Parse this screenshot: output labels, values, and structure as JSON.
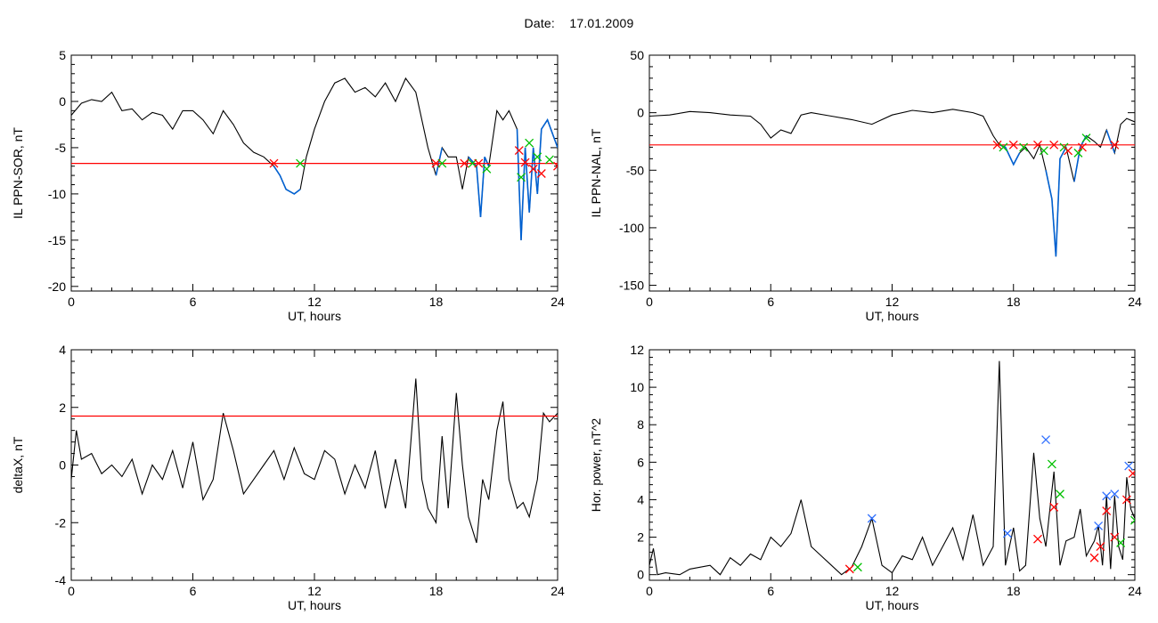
{
  "header": {
    "date_label": "Date:",
    "date_value": "17.01.2009"
  },
  "colors": {
    "trace": "#000000",
    "threshold": "#ff0000",
    "segment": "#0060d0",
    "marker_start": "#00c000",
    "marker_end": "#ff0000",
    "marker_peak": "#3070ff"
  },
  "chart_data": [
    {
      "id": "p1",
      "type": "line",
      "title": "",
      "xlabel": "UT, hours",
      "ylabel": "IL PPN-SOR, nT",
      "xlim": [
        0,
        24
      ],
      "ylim": [
        -20.5,
        5
      ],
      "xticks": [
        0,
        6,
        12,
        18,
        24
      ],
      "yticks": [
        5,
        0,
        -5,
        -10,
        -15,
        -20
      ],
      "threshold": -6.7,
      "series": [
        {
          "x": [
            0,
            0.5,
            1,
            1.5,
            2,
            2.5,
            3,
            3.5,
            4,
            4.5,
            5,
            5.5,
            6,
            6.5,
            7,
            7.5,
            8,
            8.5,
            9,
            9.5,
            10,
            10.3,
            10.6,
            11,
            11.3,
            11.6,
            12,
            12.5,
            13,
            13.5,
            14,
            14.5,
            15,
            15.5,
            16,
            16.5,
            17,
            17.3,
            17.6,
            18,
            18.3,
            18.6,
            19,
            19.3,
            19.6,
            20,
            20.2,
            20.4,
            20.6,
            21,
            21.3,
            21.6,
            22,
            22.2,
            22.4,
            22.6,
            22.8,
            23,
            23.2,
            23.5,
            24
          ],
          "y": [
            -1.5,
            -0.2,
            0.2,
            0,
            1,
            -1,
            -0.8,
            -2,
            -1.2,
            -1.5,
            -3,
            -1,
            -1,
            -2,
            -3.5,
            -1,
            -2.5,
            -4.5,
            -5.5,
            -6,
            -7,
            -8,
            -9.5,
            -10,
            -9.5,
            -6,
            -3,
            0,
            2,
            2.5,
            1,
            1.5,
            0.5,
            2,
            0,
            2.5,
            1,
            -2,
            -5,
            -8,
            -5,
            -6,
            -6,
            -9.5,
            -6,
            -7,
            -12.5,
            -6,
            -7,
            -1,
            -2,
            -1,
            -3,
            -15,
            -5,
            -12,
            -5,
            -10,
            -3,
            -2,
            -5
          ]
        }
      ],
      "blue_segments": [
        [
          10,
          11.3
        ],
        [
          18,
          18.3
        ],
        [
          19.6,
          20.6
        ],
        [
          22,
          24
        ]
      ],
      "markers": [
        {
          "x": 10,
          "y": -6.7,
          "kind": "end"
        },
        {
          "x": 11.3,
          "y": -6.7,
          "kind": "start"
        },
        {
          "x": 18,
          "y": -6.7,
          "kind": "end"
        },
        {
          "x": 18.3,
          "y": -6.7,
          "kind": "start"
        },
        {
          "x": 19.4,
          "y": -6.7,
          "kind": "end"
        },
        {
          "x": 19.8,
          "y": -6.7,
          "kind": "start"
        },
        {
          "x": 20.1,
          "y": -6.7,
          "kind": "end"
        },
        {
          "x": 20.5,
          "y": -7.3,
          "kind": "start"
        },
        {
          "x": 22.1,
          "y": -5.3,
          "kind": "end"
        },
        {
          "x": 22.2,
          "y": -8.2,
          "kind": "start"
        },
        {
          "x": 22.4,
          "y": -6.6,
          "kind": "end"
        },
        {
          "x": 22.6,
          "y": -4.5,
          "kind": "start"
        },
        {
          "x": 22.8,
          "y": -7.3,
          "kind": "end"
        },
        {
          "x": 23,
          "y": -6,
          "kind": "start"
        },
        {
          "x": 23.2,
          "y": -7.8,
          "kind": "end"
        },
        {
          "x": 23.6,
          "y": -6.3,
          "kind": "start"
        },
        {
          "x": 24,
          "y": -7,
          "kind": "end"
        }
      ]
    },
    {
      "id": "p2",
      "type": "line",
      "title": "",
      "xlabel": "UT, hours",
      "ylabel": "IL PPN-NAL, nT",
      "xlim": [
        0,
        24
      ],
      "ylim": [
        -155,
        50
      ],
      "xticks": [
        0,
        6,
        12,
        18,
        24
      ],
      "yticks": [
        50,
        0,
        -50,
        -100,
        -150
      ],
      "threshold": -28,
      "series": [
        {
          "x": [
            0,
            1,
            2,
            3,
            4,
            5,
            5.5,
            6,
            6.5,
            7,
            7.5,
            8,
            9,
            10,
            11,
            12,
            13,
            14,
            15,
            16,
            16.5,
            17,
            17.3,
            17.6,
            18,
            18.3,
            18.6,
            19,
            19.3,
            19.6,
            19.9,
            20.1,
            20.3,
            20.6,
            21,
            21.3,
            21.6,
            22,
            22.3,
            22.6,
            23,
            23.3,
            23.6,
            24
          ],
          "y": [
            -3,
            -2,
            1,
            0,
            -2,
            -3,
            -10,
            -22,
            -15,
            -18,
            -2,
            0,
            -3,
            -6,
            -10,
            -2,
            2,
            0,
            3,
            0,
            -3,
            -20,
            -28,
            -30,
            -45,
            -35,
            -30,
            -40,
            -28,
            -50,
            -75,
            -125,
            -40,
            -30,
            -60,
            -30,
            -20,
            -25,
            -30,
            -15,
            -35,
            -10,
            -5,
            -8
          ]
        }
      ],
      "blue_segments": [
        [
          17.3,
          18.5
        ],
        [
          19.1,
          19.5
        ],
        [
          19.6,
          20.6
        ],
        [
          20.7,
          21.6
        ],
        [
          22.6,
          23.2
        ]
      ],
      "markers": [
        {
          "x": 17.2,
          "y": -28,
          "kind": "end"
        },
        {
          "x": 17.5,
          "y": -30,
          "kind": "start"
        },
        {
          "x": 18,
          "y": -28,
          "kind": "end"
        },
        {
          "x": 18.5,
          "y": -30,
          "kind": "start"
        },
        {
          "x": 19.2,
          "y": -28,
          "kind": "end"
        },
        {
          "x": 19.5,
          "y": -33,
          "kind": "start"
        },
        {
          "x": 20,
          "y": -28,
          "kind": "end"
        },
        {
          "x": 20.5,
          "y": -30,
          "kind": "start"
        },
        {
          "x": 20.7,
          "y": -33,
          "kind": "end"
        },
        {
          "x": 21.2,
          "y": -35,
          "kind": "start"
        },
        {
          "x": 21.4,
          "y": -30,
          "kind": "end"
        },
        {
          "x": 21.6,
          "y": -22,
          "kind": "start"
        },
        {
          "x": 23,
          "y": -28,
          "kind": "end"
        }
      ]
    },
    {
      "id": "p3",
      "type": "line",
      "title": "",
      "xlabel": "UT, hours",
      "ylabel": "deltaX, nT",
      "xlim": [
        0,
        24
      ],
      "ylim": [
        -4,
        4
      ],
      "xticks": [
        0,
        6,
        12,
        18,
        24
      ],
      "yticks": [
        4,
        2,
        0,
        -2,
        -4
      ],
      "threshold": 1.7,
      "series": [
        {
          "x": [
            0,
            0.25,
            0.5,
            1,
            1.5,
            2,
            2.5,
            3,
            3.5,
            4,
            4.5,
            5,
            5.5,
            6,
            6.5,
            7,
            7.5,
            8,
            8.5,
            9,
            9.5,
            10,
            10.5,
            11,
            11.5,
            12,
            12.5,
            13,
            13.5,
            14,
            14.5,
            15,
            15.5,
            16,
            16.5,
            17,
            17.3,
            17.6,
            18,
            18.3,
            18.6,
            19,
            19.3,
            19.6,
            20,
            20.3,
            20.6,
            21,
            21.3,
            21.6,
            22,
            22.3,
            22.6,
            23,
            23.3,
            23.6,
            24
          ],
          "y": [
            -0.5,
            1.2,
            0.2,
            0.4,
            -0.3,
            0,
            -0.4,
            0.2,
            -1,
            0,
            -0.5,
            0.5,
            -0.8,
            0.8,
            -1.2,
            -0.5,
            1.8,
            0.5,
            -1,
            -0.5,
            0,
            0.5,
            -0.5,
            0.6,
            -0.3,
            -0.5,
            0.5,
            0.2,
            -1,
            0,
            -0.8,
            0.5,
            -1.5,
            0.2,
            -1.5,
            3,
            -0.5,
            -1.5,
            -2,
            1,
            -1.5,
            2.5,
            0,
            -1.8,
            -2.7,
            -0.5,
            -1.2,
            1.2,
            2.2,
            -0.5,
            -1.5,
            -1.3,
            -1.8,
            -0.5,
            1.8,
            1.5,
            1.8
          ]
        }
      ],
      "blue_segments": [],
      "markers": []
    },
    {
      "id": "p4",
      "type": "line",
      "title": "",
      "xlabel": "UT, hours",
      "ylabel": "Hor. power, nT^2",
      "xlim": [
        0,
        24
      ],
      "ylim": [
        -0.3,
        12
      ],
      "xticks": [
        0,
        6,
        12,
        18,
        24
      ],
      "yticks": [
        12,
        10,
        8,
        6,
        4,
        2,
        0
      ],
      "threshold": null,
      "series": [
        {
          "x": [
            0,
            0.2,
            0.4,
            0.8,
            1.5,
            2,
            3,
            3.5,
            4,
            4.5,
            5,
            5.5,
            6,
            6.5,
            7,
            7.5,
            8,
            8.5,
            9,
            9.5,
            10,
            10.5,
            11,
            11.5,
            12,
            12.5,
            13,
            13.5,
            14,
            14.5,
            15,
            15.5,
            16,
            16.5,
            17,
            17.3,
            17.6,
            18,
            18.3,
            18.6,
            19,
            19.3,
            19.6,
            20,
            20.3,
            20.6,
            21,
            21.3,
            21.6,
            22,
            22.2,
            22.4,
            22.6,
            22.8,
            23,
            23.2,
            23.4,
            23.6,
            23.8,
            24
          ],
          "y": [
            0.5,
            1.4,
            0,
            0.1,
            0,
            0.3,
            0.5,
            0,
            0.9,
            0.5,
            1.1,
            0.8,
            2,
            1.5,
            2.2,
            4,
            1.5,
            1,
            0.5,
            0,
            0.4,
            1.5,
            3,
            0.5,
            0.1,
            1,
            0.8,
            2,
            0.5,
            1.5,
            2.5,
            0.8,
            3.2,
            0.5,
            1.5,
            11.4,
            0.5,
            2.5,
            0.2,
            0.5,
            6.5,
            3,
            1.5,
            5.5,
            0.5,
            1.8,
            2,
            3.5,
            1,
            1.8,
            2.6,
            0.5,
            4.2,
            0.3,
            4.2,
            1.5,
            0.8,
            5.2,
            3.5,
            3
          ]
        }
      ],
      "blue_segments": [],
      "markers": [
        {
          "x": 9.9,
          "y": 0.3,
          "kind": "end"
        },
        {
          "x": 10.3,
          "y": 0.4,
          "kind": "start"
        },
        {
          "x": 11,
          "y": 3,
          "kind": "peak"
        },
        {
          "x": 17.7,
          "y": 2.2,
          "kind": "peak"
        },
        {
          "x": 19.6,
          "y": 7.2,
          "kind": "peak"
        },
        {
          "x": 19.2,
          "y": 1.9,
          "kind": "end"
        },
        {
          "x": 19.9,
          "y": 5.9,
          "kind": "start"
        },
        {
          "x": 20,
          "y": 3.6,
          "kind": "end"
        },
        {
          "x": 20.3,
          "y": 4.3,
          "kind": "start"
        },
        {
          "x": 22.2,
          "y": 2.6,
          "kind": "peak"
        },
        {
          "x": 22.3,
          "y": 1.5,
          "kind": "end"
        },
        {
          "x": 22.6,
          "y": 4.2,
          "kind": "peak"
        },
        {
          "x": 22.6,
          "y": 3.4,
          "kind": "end"
        },
        {
          "x": 23,
          "y": 4.3,
          "kind": "peak"
        },
        {
          "x": 23,
          "y": 2,
          "kind": "end"
        },
        {
          "x": 23.3,
          "y": 1.7,
          "kind": "start"
        },
        {
          "x": 23.6,
          "y": 4,
          "kind": "end"
        },
        {
          "x": 23.7,
          "y": 5.8,
          "kind": "peak"
        },
        {
          "x": 23.9,
          "y": 5.4,
          "kind": "end"
        },
        {
          "x": 24,
          "y": 2.9,
          "kind": "start"
        },
        {
          "x": 22,
          "y": 0.9,
          "kind": "end"
        }
      ]
    }
  ]
}
